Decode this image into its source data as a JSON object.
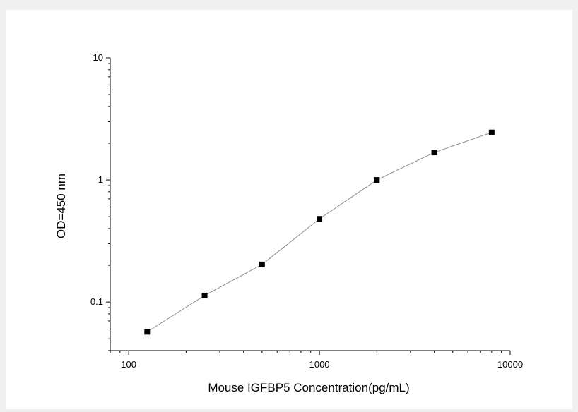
{
  "chart_data": {
    "type": "line",
    "xlabel": "Mouse IGFBP5 Concentration(pg/mL)",
    "ylabel": "OD=450 nm",
    "x_scale": "log",
    "y_scale": "log",
    "xlim": [
      80,
      10000
    ],
    "ylim": [
      0.04,
      10
    ],
    "x_ticks": [
      {
        "value": 100,
        "label": "100"
      },
      {
        "value": 1000,
        "label": "1000"
      },
      {
        "value": 10000,
        "label": "10000"
      }
    ],
    "y_ticks": [
      {
        "value": 0.1,
        "label": "0.1"
      },
      {
        "value": 1,
        "label": "1"
      },
      {
        "value": 10,
        "label": "10"
      }
    ],
    "grid": false,
    "legend": "none",
    "series": [
      {
        "x": [
          125,
          250,
          500,
          1000,
          2000,
          4000,
          8000
        ],
        "y": [
          0.057,
          0.113,
          0.203,
          0.48,
          1.0,
          1.68,
          2.45
        ],
        "marker": "square",
        "marker_color": "#000000",
        "line_color": "#8c8c8c"
      }
    ]
  }
}
